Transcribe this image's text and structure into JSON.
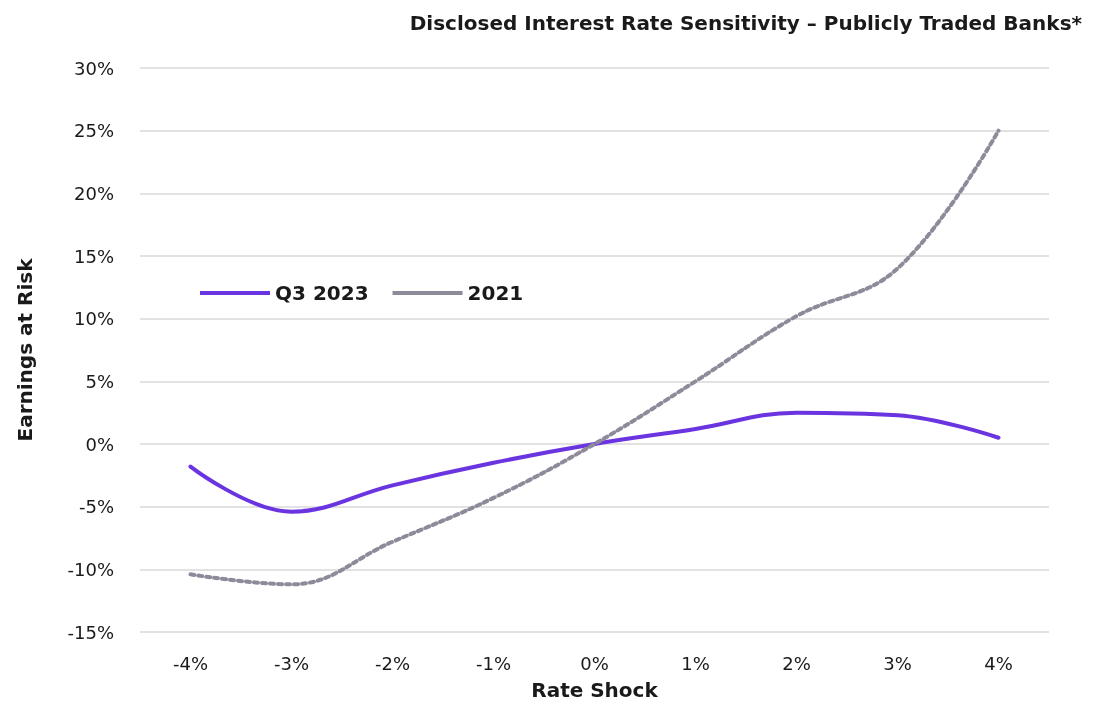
{
  "chart_data": {
    "type": "line",
    "title": "Disclosed Interest Rate Sensitivity – Publicly Traded Banks*",
    "xlabel": "Rate Shock",
    "ylabel": "Earnings at Risk",
    "categories": [
      "-4%",
      "-3%",
      "-2%",
      "-1%",
      "0%",
      "1%",
      "2%",
      "3%",
      "4%"
    ],
    "series": [
      {
        "name": "Q3 2023",
        "color": "#6a35e0",
        "line_style": "solid",
        "values": [
          -1.8,
          -5.4,
          -3.3,
          -1.5,
          0,
          1.2,
          2.5,
          2.3,
          0.5
        ]
      },
      {
        "name": "2021",
        "color": "#8f8a99",
        "line_style": "dotted",
        "values": [
          -10.4,
          -11.2,
          -7.8,
          -4.3,
          0,
          5,
          10.2,
          14,
          25
        ]
      }
    ],
    "ylim": [
      -15,
      30
    ],
    "yticks": [
      {
        "value": -15,
        "label": "-15%"
      },
      {
        "value": -10,
        "label": "-10%"
      },
      {
        "value": -5,
        "label": "-5%"
      },
      {
        "value": 0,
        "label": "0%"
      },
      {
        "value": 5,
        "label": "5%"
      },
      {
        "value": 10,
        "label": "10%"
      },
      {
        "value": 15,
        "label": "15%"
      },
      {
        "value": 20,
        "label": "20%"
      },
      {
        "value": 25,
        "label": "25%"
      },
      {
        "value": 30,
        "label": "30%"
      }
    ],
    "grid": "y",
    "legend": "left",
    "marker": "none"
  }
}
